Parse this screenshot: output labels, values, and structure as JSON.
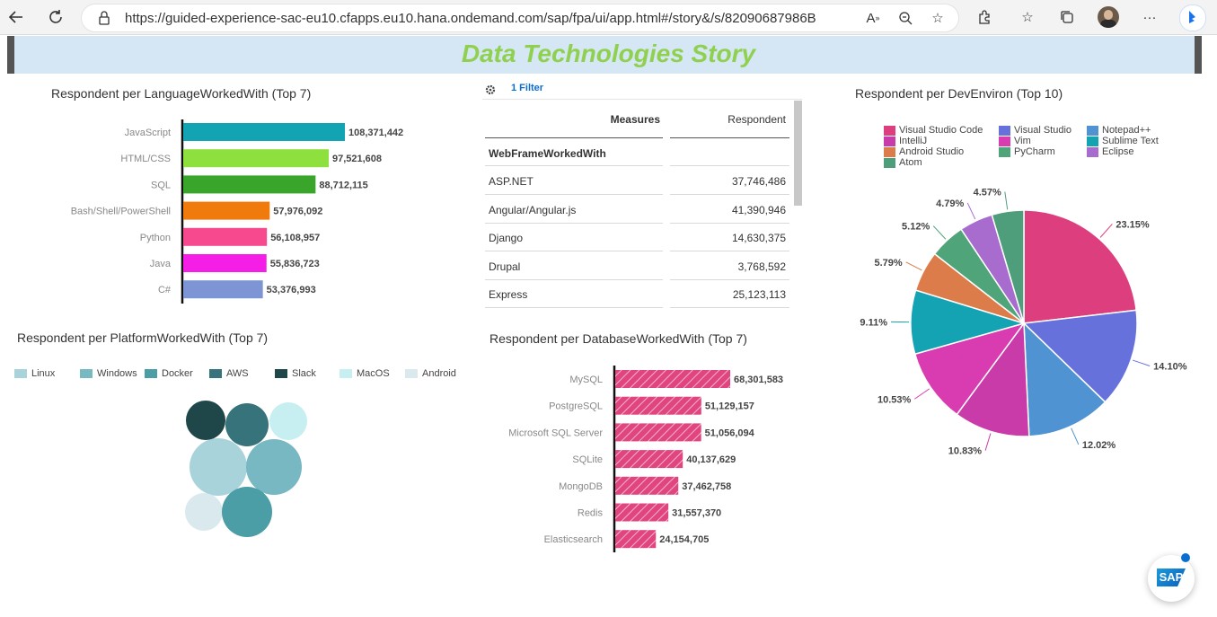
{
  "browser": {
    "url": "https://guided-experience-sac-eu10.cfapps.eu10.hana.ondemand.com/sap/fpa/ui/app.html#/story&/s/82090687986B05A4CE6EB8...",
    "icons": [
      "back-icon",
      "refresh-icon",
      "lock-icon",
      "read-aloud-icon",
      "zoom-icon",
      "favorite-add-icon",
      "extensions-icon",
      "favorites-icon",
      "collections-icon",
      "profile-avatar",
      "more-icon",
      "bing-icon"
    ]
  },
  "story": {
    "title": "Data Technologies Story"
  },
  "language_chart": {
    "title": "Respondent per LanguageWorkedWith (Top 7)",
    "chart_data": {
      "type": "bar",
      "categories": [
        "JavaScript",
        "HTML/CSS",
        "SQL",
        "Bash/Shell/PowerShell",
        "Python",
        "Java",
        "C#"
      ],
      "values": [
        108371442,
        97521608,
        88712115,
        57976092,
        56108957,
        55836723,
        53376993
      ],
      "value_labels": [
        "108,371,442",
        "97,521,608",
        "88,712,115",
        "57,976,092",
        "56,108,957",
        "55,836,723",
        "53,376,993"
      ],
      "colors": [
        "#13a4b4",
        "#8ee03f",
        "#3aa52b",
        "#f07a0c",
        "#f6498e",
        "#f51ee6",
        "#7d95d5"
      ]
    }
  },
  "table": {
    "filter_label": "1 Filter",
    "header_measures": "Measures",
    "header_respondent": "Respondent",
    "dimension_label": "WebFrameWorkedWith",
    "rows": [
      {
        "name": "ASP.NET",
        "value": "37,746,486"
      },
      {
        "name": "Angular/Angular.js",
        "value": "41,390,946"
      },
      {
        "name": "Django",
        "value": "14,630,375"
      },
      {
        "name": "Drupal",
        "value": "3,768,592"
      },
      {
        "name": "Express",
        "value": "25,123,113"
      }
    ]
  },
  "platform_chart": {
    "title": "Respondent per PlatformWorkedWith (Top 7)",
    "legend": [
      {
        "label": "Linux",
        "color": "#a9d3db"
      },
      {
        "label": "Windows",
        "color": "#78b8c2"
      },
      {
        "label": "Docker",
        "color": "#4b9da6"
      },
      {
        "label": "AWS",
        "color": "#36737a"
      },
      {
        "label": "Slack",
        "color": "#1f4648"
      },
      {
        "label": "MacOS",
        "color": "#c7eef0"
      },
      {
        "label": "Android",
        "color": "#d9e9ee"
      }
    ]
  },
  "database_chart": {
    "title": "Respondent per DatabaseWorkedWith (Top 7)",
    "chart_data": {
      "type": "bar",
      "categories": [
        "MySQL",
        "PostgreSQL",
        "Microsoft SQL Server",
        "SQLite",
        "MongoDB",
        "Redis",
        "Elasticsearch"
      ],
      "values": [
        68301583,
        51129157,
        51056094,
        40137629,
        37462758,
        31557370,
        24154705
      ],
      "value_labels": [
        "68,301,583",
        "51,129,157",
        "51,056,094",
        "40,137,629",
        "37,462,758",
        "31,557,370",
        "24,154,705"
      ],
      "color": "#e0457f"
    }
  },
  "devenv_chart": {
    "title": "Respondent per DevEnviron (Top 10)",
    "chart_data": {
      "type": "pie",
      "categories": [
        "Visual Studio Code",
        "Visual Studio",
        "Notepad++",
        "IntelliJ",
        "Vim",
        "Sublime Text",
        "Android Studio",
        "PyCharm",
        "Eclipse",
        "Atom"
      ],
      "values": [
        23.15,
        14.1,
        12.02,
        10.83,
        10.53,
        9.11,
        5.79,
        5.12,
        4.79,
        4.57
      ],
      "value_labels": [
        "23.15%",
        "14.10%",
        "12.02%",
        "10.83%",
        "10.53%",
        "9.11%",
        "5.79%",
        "5.12%",
        "4.79%",
        "4.57%"
      ],
      "colors": [
        "#dc3e7e",
        "#6771dc",
        "#4f93d2",
        "#c83ba8",
        "#d93bb0",
        "#14a3b2",
        "#db7c4a",
        "#4fa47a",
        "#a86ccf",
        "#4e9e7c"
      ]
    }
  },
  "sap_badge": {
    "label": "SAP"
  }
}
